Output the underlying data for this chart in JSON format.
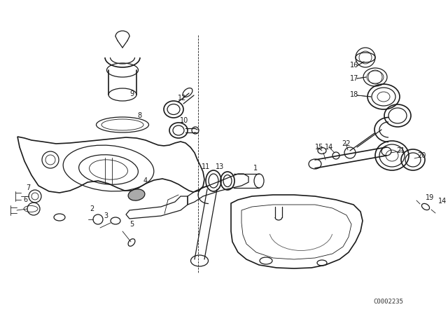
{
  "bg_color": "#ffffff",
  "line_color": "#1a1a1a",
  "watermark": "C0002235",
  "lw_thin": 0.6,
  "lw_med": 0.9,
  "lw_thick": 1.2
}
